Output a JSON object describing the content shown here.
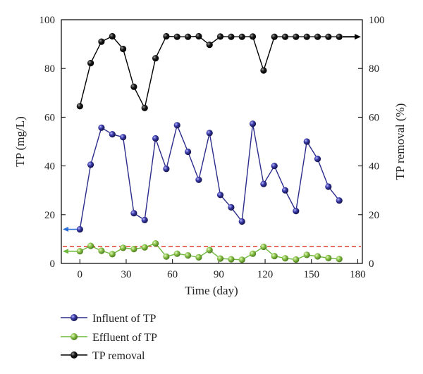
{
  "chart_data": {
    "type": "line",
    "title": "",
    "xlabel": "Time (day)",
    "ylabel_left": "TP (mg/L)",
    "ylabel_right": "TP removal (%)",
    "xlim": [
      -12,
      183
    ],
    "ylim_left": [
      0,
      100
    ],
    "ylim_right": [
      0,
      100
    ],
    "x_ticks": [
      0,
      30,
      60,
      90,
      120,
      150,
      180
    ],
    "y_ticks_left": [
      0,
      20,
      40,
      60,
      80,
      100
    ],
    "y_ticks_right": [
      0,
      20,
      40,
      60,
      80,
      100
    ],
    "legend_position": "below",
    "reference_line": {
      "y": 7,
      "color": "#e03020",
      "style": "dashed"
    },
    "axis_arrows": [
      {
        "series": "Influent of TP",
        "axis": "left",
        "y": 14,
        "color": "#2a6fd6"
      },
      {
        "series": "Effluent of TP",
        "axis": "left",
        "y": 5,
        "color": "#6cb83a"
      },
      {
        "series": "TP removal",
        "axis": "right",
        "y": 93,
        "color": "#000000"
      }
    ],
    "series": [
      {
        "name": "Influent of TP",
        "axis": "left",
        "color": "#2b2b8c",
        "marker_color": "#3a3aa8",
        "x": [
          0,
          7,
          14,
          21,
          28,
          35,
          42,
          49,
          56,
          63,
          70,
          77,
          84,
          91,
          98,
          105,
          112,
          119,
          126,
          133,
          140,
          147,
          154,
          161,
          168
        ],
        "y": [
          14,
          40.5,
          55.7,
          53,
          51.8,
          20.6,
          17.8,
          51.3,
          38.8,
          56.7,
          45.8,
          34.3,
          53.5,
          28.1,
          23,
          17.2,
          57.3,
          32.6,
          40,
          30,
          21.5,
          50,
          42.9,
          31.5,
          25.8
        ]
      },
      {
        "name": "Effluent of TP",
        "axis": "left",
        "color": "#6cb83a",
        "marker_color": "#8bc34a",
        "x": [
          0,
          7,
          14,
          21,
          28,
          35,
          42,
          49,
          56,
          63,
          70,
          77,
          84,
          91,
          98,
          105,
          112,
          119,
          126,
          133,
          140,
          147,
          154,
          161,
          168
        ],
        "y": [
          5,
          7.2,
          5.2,
          3.8,
          6.4,
          5.9,
          6.6,
          8.2,
          2.8,
          4,
          3.3,
          2.5,
          5.5,
          2,
          1.7,
          1.5,
          4,
          6.8,
          3,
          2.1,
          1.6,
          3.5,
          2.9,
          2.2,
          1.8
        ]
      },
      {
        "name": "TP removal",
        "axis": "right",
        "color": "#000000",
        "marker_color": "#1a1a1a",
        "x": [
          0,
          7,
          14,
          21,
          28,
          35,
          42,
          49,
          56,
          63,
          70,
          77,
          84,
          91,
          98,
          105,
          112,
          119,
          126,
          133,
          140,
          147,
          154,
          161,
          168
        ],
        "y": [
          64.5,
          82.2,
          91,
          93.2,
          88,
          72.5,
          63.8,
          84.2,
          93.2,
          93,
          93,
          93.2,
          89.7,
          93.1,
          93,
          93,
          93.1,
          79.2,
          93,
          93,
          93,
          93,
          93,
          93,
          93
        ]
      }
    ]
  }
}
